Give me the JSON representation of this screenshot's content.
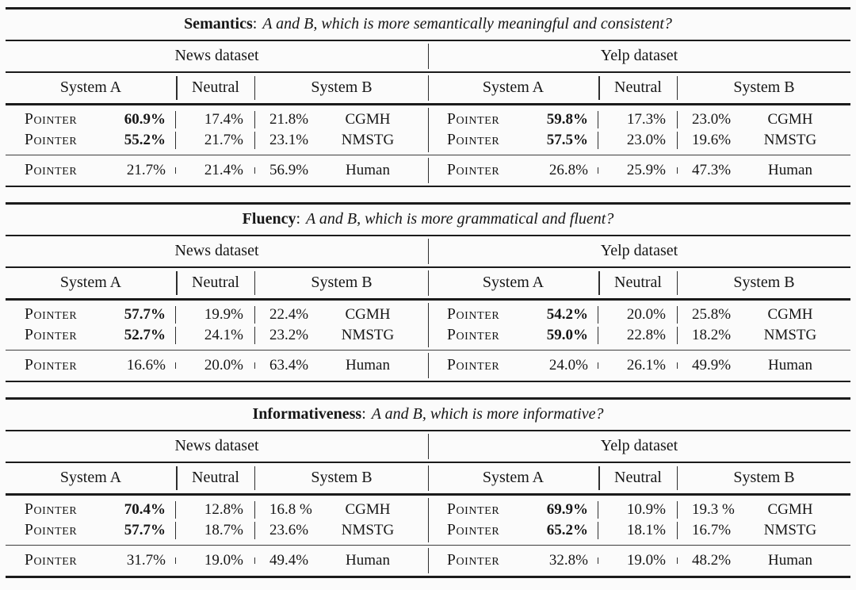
{
  "figure": {
    "background": "#fbfbfb",
    "text_color": "#161616",
    "rule_color": "#1b1b1b"
  },
  "tables": [
    {
      "criterion": "Semantics",
      "colon": ":",
      "question": "A and B, which is more semantically meaningful and consistent?",
      "halves": [
        {
          "dataset": "News dataset",
          "col_system_a": "System A",
          "col_neutral": "Neutral",
          "col_system_b": "System B",
          "rows": [
            {
              "system_a": "Pointer",
              "a_pct": "60.9%",
              "neutral_pct": "17.4%",
              "b_pct": "21.8%",
              "system_b": "CGMH"
            },
            {
              "system_a": "Pointer",
              "a_pct": "55.2%",
              "neutral_pct": "21.7%",
              "b_pct": "23.1%",
              "system_b": "NMSTG"
            }
          ],
          "human": {
            "system_a": "Pointer",
            "a_pct": "21.7%",
            "neutral_pct": "21.4%",
            "b_pct": "56.9%",
            "system_b": "Human"
          }
        },
        {
          "dataset": "Yelp dataset",
          "col_system_a": "System A",
          "col_neutral": "Neutral",
          "col_system_b": "System B",
          "rows": [
            {
              "system_a": "Pointer",
              "a_pct": "59.8%",
              "neutral_pct": "17.3%",
              "b_pct": "23.0%",
              "system_b": "CGMH"
            },
            {
              "system_a": "Pointer",
              "a_pct": "57.5%",
              "neutral_pct": "23.0%",
              "b_pct": "19.6%",
              "system_b": "NMSTG"
            }
          ],
          "human": {
            "system_a": "Pointer",
            "a_pct": "26.8%",
            "neutral_pct": "25.9%",
            "b_pct": "47.3%",
            "system_b": "Human"
          }
        }
      ]
    },
    {
      "criterion": "Fluency",
      "colon": ":",
      "question": "A and B, which is more grammatical and fluent?",
      "halves": [
        {
          "dataset": "News dataset",
          "col_system_a": "System A",
          "col_neutral": "Neutral",
          "col_system_b": "System B",
          "rows": [
            {
              "system_a": "Pointer",
              "a_pct": "57.7%",
              "neutral_pct": "19.9%",
              "b_pct": "22.4%",
              "system_b": "CGMH"
            },
            {
              "system_a": "Pointer",
              "a_pct": "52.7%",
              "neutral_pct": "24.1%",
              "b_pct": "23.2%",
              "system_b": "NMSTG"
            }
          ],
          "human": {
            "system_a": "Pointer",
            "a_pct": "16.6%",
            "neutral_pct": "20.0%",
            "b_pct": "63.4%",
            "system_b": "Human"
          }
        },
        {
          "dataset": "Yelp dataset",
          "col_system_a": "System A",
          "col_neutral": "Neutral",
          "col_system_b": "System B",
          "rows": [
            {
              "system_a": "Pointer",
              "a_pct": "54.2%",
              "neutral_pct": "20.0%",
              "b_pct": "25.8%",
              "system_b": "CGMH"
            },
            {
              "system_a": "Pointer",
              "a_pct": "59.0%",
              "neutral_pct": "22.8%",
              "b_pct": "18.2%",
              "system_b": "NMSTG"
            }
          ],
          "human": {
            "system_a": "Pointer",
            "a_pct": "24.0%",
            "neutral_pct": "26.1%",
            "b_pct": "49.9%",
            "system_b": "Human"
          }
        }
      ]
    },
    {
      "criterion": "Informativeness",
      "colon": ":",
      "question": "A and B, which is more informative?",
      "halves": [
        {
          "dataset": "News dataset",
          "col_system_a": "System A",
          "col_neutral": "Neutral",
          "col_system_b": "System B",
          "rows": [
            {
              "system_a": "Pointer",
              "a_pct": "70.4%",
              "neutral_pct": "12.8%",
              "b_pct": "16.8 %",
              "system_b": "CGMH"
            },
            {
              "system_a": "Pointer",
              "a_pct": "57.7%",
              "neutral_pct": "18.7%",
              "b_pct": "23.6%",
              "system_b": "NMSTG"
            }
          ],
          "human": {
            "system_a": "Pointer",
            "a_pct": "31.7%",
            "neutral_pct": "19.0%",
            "b_pct": "49.4%",
            "system_b": "Human"
          }
        },
        {
          "dataset": "Yelp dataset",
          "col_system_a": "System A",
          "col_neutral": "Neutral",
          "col_system_b": "System B",
          "rows": [
            {
              "system_a": "Pointer",
              "a_pct": "69.9%",
              "neutral_pct": "10.9%",
              "b_pct": "19.3 %",
              "system_b": "CGMH"
            },
            {
              "system_a": "Pointer",
              "a_pct": "65.2%",
              "neutral_pct": "18.1%",
              "b_pct": "16.7%",
              "system_b": "NMSTG"
            }
          ],
          "human": {
            "system_a": "Pointer",
            "a_pct": "32.8%",
            "neutral_pct": "19.0%",
            "b_pct": "48.2%",
            "system_b": "Human"
          }
        }
      ]
    }
  ]
}
